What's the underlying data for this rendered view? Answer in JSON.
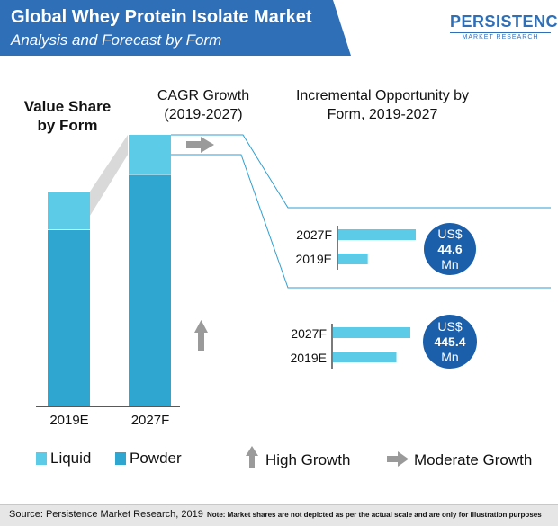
{
  "header": {
    "title": "Global Whey Protein Isolate Market",
    "subtitle": "Analysis and Forecast by Form"
  },
  "logo": {
    "main": "PERSISTENCE",
    "sub": "MARKET RESEARCH"
  },
  "colors": {
    "header_blue": "#2f6fb8",
    "liquid": "#5ccbe8",
    "powder": "#2fa6cf",
    "circle": "#1b5faa",
    "arrow": "#9a9a9a"
  },
  "chart_data": [
    {
      "type": "bar",
      "stacked": true,
      "title": "Value Share by Form",
      "categories": [
        "2019E",
        "2027F"
      ],
      "series": [
        {
          "name": "Powder",
          "values": [
            82.4,
            85.5
          ]
        },
        {
          "name": "Liquid",
          "values": [
            17.6,
            14.5
          ]
        }
      ],
      "ylim": [
        0,
        100
      ],
      "note": "Market shares are not depicted as per the actual scale and are only for illustration purposes"
    },
    {
      "type": "bar",
      "orientation": "horizontal",
      "categories": [
        "2027F",
        "2019E"
      ],
      "values": [
        1.0,
        0.38
      ],
      "opportunity_label_lines": [
        "US$",
        "44.6",
        "Mn"
      ],
      "series_ref": "Liquid"
    },
    {
      "type": "bar",
      "orientation": "horizontal",
      "categories": [
        "2027F",
        "2019E"
      ],
      "values": [
        1.0,
        0.82
      ],
      "opportunity_label_lines": [
        "US$",
        "445.4",
        "Mn"
      ],
      "series_ref": "Powder"
    }
  ],
  "cagr": {
    "heading_lines": [
      "CAGR Growth",
      "(2019-2027)"
    ],
    "liquid": {
      "indicator": "moderate",
      "icon": "right-arrow-icon"
    },
    "powder": {
      "indicator": "high",
      "icon": "up-arrow-icon"
    }
  },
  "incremental": {
    "heading_lines": [
      "Incremental Opportunity by",
      "Form, 2019-2027"
    ]
  },
  "value_share_heading_lines": [
    "Value Share",
    "by Form"
  ],
  "legend": {
    "liquid": "Liquid",
    "powder": "Powder",
    "high_growth": "High Growth",
    "moderate_growth": "Moderate Growth"
  },
  "footer": {
    "source": "Source: Persistence Market Research, 2019",
    "note": "Note: Market shares are not depicted as per the actual scale and are only for illustration purposes"
  }
}
